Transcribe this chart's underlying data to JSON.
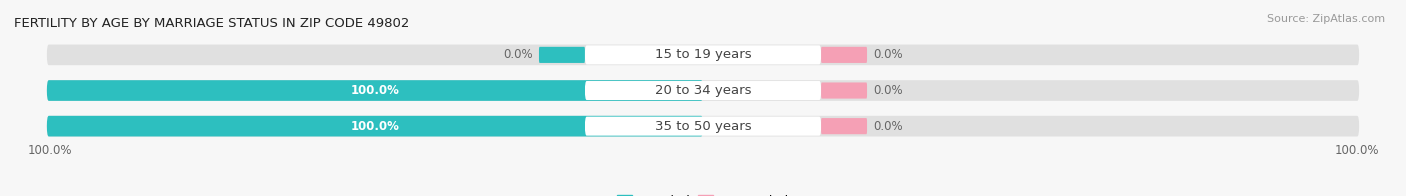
{
  "title": "FERTILITY BY AGE BY MARRIAGE STATUS IN ZIP CODE 49802",
  "source": "Source: ZipAtlas.com",
  "categories": [
    "15 to 19 years",
    "20 to 34 years",
    "35 to 50 years"
  ],
  "married_values": [
    0.0,
    100.0,
    100.0
  ],
  "unmarried_values": [
    0.0,
    0.0,
    0.0
  ],
  "married_color": "#2dbfbf",
  "unmarried_color": "#f5a0b5",
  "bar_bg_color": "#e0e0e0",
  "bar_height": 0.58,
  "title_fontsize": 9.5,
  "label_fontsize": 9.5,
  "value_fontsize": 8.5,
  "legend_fontsize": 9,
  "source_fontsize": 8,
  "bg_color": "#f7f7f7",
  "text_color": "#444444",
  "white": "#ffffff",
  "value_label_white": "#ffffff",
  "value_label_dark": "#666666"
}
